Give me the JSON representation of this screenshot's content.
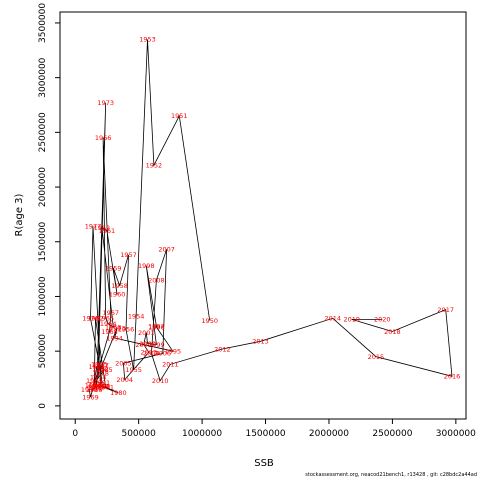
{
  "chart_data": {
    "type": "line",
    "xlabel": "SSB",
    "ylabel": "R(age 3)",
    "xlim": [
      -120000,
      3080000
    ],
    "ylim": [
      -120000,
      3600000
    ],
    "x_ticks": [
      0,
      500000,
      1000000,
      1500000,
      2000000,
      2500000,
      3000000
    ],
    "x_tick_labels": [
      "0",
      "500000",
      "1000000",
      "1500000",
      "2000000",
      "2500000",
      "3000000"
    ],
    "y_ticks": [
      0,
      500000,
      1000000,
      1500000,
      2000000,
      2500000,
      3000000,
      3500000
    ],
    "y_tick_labels": [
      "0",
      "500000",
      "1000000",
      "1500000",
      "2000000",
      "2500000",
      "3000000",
      "3500000"
    ],
    "line_color": "#000000",
    "label_color": "#ff0000",
    "series": [
      {
        "points": [
          {
            "year": "1950",
            "x": 1060000,
            "y": 780000
          },
          {
            "year": "1951",
            "x": 820000,
            "y": 2650000
          },
          {
            "year": "1952",
            "x": 620000,
            "y": 2200000
          },
          {
            "year": "1953",
            "x": 570000,
            "y": 3350000
          },
          {
            "year": "1954",
            "x": 480000,
            "y": 820000
          },
          {
            "year": "1955",
            "x": 460000,
            "y": 330000
          },
          {
            "year": "1956",
            "x": 400000,
            "y": 700000
          },
          {
            "year": "1957",
            "x": 420000,
            "y": 1380000
          },
          {
            "year": "1958",
            "x": 350000,
            "y": 1100000
          },
          {
            "year": "1959",
            "x": 300000,
            "y": 1260000
          },
          {
            "year": "1960",
            "x": 330000,
            "y": 1020000
          },
          {
            "year": "1961",
            "x": 250000,
            "y": 1600000
          },
          {
            "year": "1962",
            "x": 210000,
            "y": 1630000
          },
          {
            "year": "1963",
            "x": 300000,
            "y": 720000
          },
          {
            "year": "1964",
            "x": 260000,
            "y": 750000
          },
          {
            "year": "1965",
            "x": 240000,
            "y": 800000
          },
          {
            "year": "1966",
            "x": 220000,
            "y": 2450000
          },
          {
            "year": "1967",
            "x": 280000,
            "y": 850000
          },
          {
            "year": "1968",
            "x": 270000,
            "y": 680000
          },
          {
            "year": "1969",
            "x": 120000,
            "y": 80000
          },
          {
            "year": "1970",
            "x": 110000,
            "y": 150000
          },
          {
            "year": "1971",
            "x": 150000,
            "y": 160000
          },
          {
            "year": "1972",
            "x": 170000,
            "y": 200000
          },
          {
            "year": "1973",
            "x": 240000,
            "y": 2770000
          },
          {
            "year": "1974",
            "x": 180000,
            "y": 260000
          },
          {
            "year": "1975",
            "x": 190000,
            "y": 380000
          },
          {
            "year": "1976",
            "x": 120000,
            "y": 800000
          },
          {
            "year": "1977",
            "x": 140000,
            "y": 1640000
          },
          {
            "year": "1978",
            "x": 200000,
            "y": 300000
          },
          {
            "year": "1979",
            "x": 200000,
            "y": 180000
          },
          {
            "year": "1980",
            "x": 340000,
            "y": 120000
          },
          {
            "year": "1981",
            "x": 240000,
            "y": 170000
          },
          {
            "year": "1982",
            "x": 160000,
            "y": 800000
          },
          {
            "year": "1983",
            "x": 150000,
            "y": 230000
          },
          {
            "year": "1984",
            "x": 170000,
            "y": 360000
          },
          {
            "year": "1985",
            "x": 230000,
            "y": 330000
          },
          {
            "year": "1986",
            "x": 140000,
            "y": 190000
          },
          {
            "year": "1987",
            "x": 200000,
            "y": 370000
          },
          {
            "year": "1988",
            "x": 150000,
            "y": 150000
          },
          {
            "year": "1989",
            "x": 160000,
            "y": 170000
          },
          {
            "year": "1990",
            "x": 210000,
            "y": 180000
          },
          {
            "year": "1991",
            "x": 210000,
            "y": 210000
          },
          {
            "year": "1992",
            "x": 200000,
            "y": 340000
          },
          {
            "year": "1993",
            "x": 330000,
            "y": 710000
          },
          {
            "year": "1994",
            "x": 310000,
            "y": 620000
          },
          {
            "year": "1995",
            "x": 770000,
            "y": 500000
          },
          {
            "year": "1996",
            "x": 640000,
            "y": 720000
          },
          {
            "year": "1997",
            "x": 640000,
            "y": 730000
          },
          {
            "year": "1998",
            "x": 560000,
            "y": 1280000
          },
          {
            "year": "1999",
            "x": 640000,
            "y": 560000
          },
          {
            "year": "2000",
            "x": 570000,
            "y": 570000
          },
          {
            "year": "2001",
            "x": 560000,
            "y": 670000
          },
          {
            "year": "2002",
            "x": 540000,
            "y": 560000
          },
          {
            "year": "2003",
            "x": 580000,
            "y": 490000
          },
          {
            "year": "2004",
            "x": 390000,
            "y": 240000
          },
          {
            "year": "2005",
            "x": 380000,
            "y": 390000
          },
          {
            "year": "2006",
            "x": 690000,
            "y": 480000
          },
          {
            "year": "2007",
            "x": 720000,
            "y": 1430000
          },
          {
            "year": "2008",
            "x": 640000,
            "y": 1150000
          },
          {
            "year": "2009",
            "x": 600000,
            "y": 480000
          },
          {
            "year": "2010",
            "x": 670000,
            "y": 230000
          },
          {
            "year": "2011",
            "x": 750000,
            "y": 380000
          },
          {
            "year": "2012",
            "x": 1160000,
            "y": 520000
          },
          {
            "year": "2013",
            "x": 1460000,
            "y": 590000
          },
          {
            "year": "2014",
            "x": 2030000,
            "y": 800000
          },
          {
            "year": "2015",
            "x": 2370000,
            "y": 450000
          },
          {
            "year": "2016",
            "x": 2970000,
            "y": 270000
          },
          {
            "year": "2017",
            "x": 2920000,
            "y": 880000
          },
          {
            "year": "2018",
            "x": 2500000,
            "y": 680000
          },
          {
            "year": "2019",
            "x": 2180000,
            "y": 790000
          },
          {
            "year": "2020",
            "x": 2420000,
            "y": 790000
          }
        ]
      }
    ]
  },
  "footer": "stockassessment.org, neacod21bench1, r13428 , git: c28bdc2a44ad"
}
